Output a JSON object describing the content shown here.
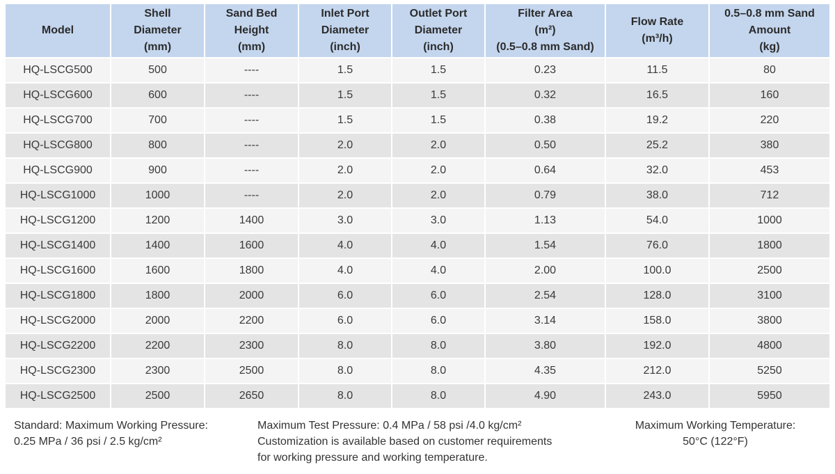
{
  "table": {
    "headers": [
      {
        "lines": [
          "Model"
        ]
      },
      {
        "lines": [
          "Shell",
          "Diameter",
          "(mm)"
        ]
      },
      {
        "lines": [
          "Sand Bed",
          "Height",
          "(mm)"
        ]
      },
      {
        "lines": [
          "Inlet Port",
          "Diameter",
          "(inch)"
        ]
      },
      {
        "lines": [
          "Outlet Port",
          "Diameter",
          "(inch)"
        ]
      },
      {
        "lines": [
          "Filter Area",
          "(m²)",
          "(0.5–0.8 mm Sand)"
        ]
      },
      {
        "lines": [
          "Flow Rate",
          "(m³/h)"
        ]
      },
      {
        "lines": [
          "0.5–0.8 mm Sand",
          "Amount",
          "(kg)"
        ]
      }
    ],
    "rows": [
      [
        "HQ-LSCG500",
        "500",
        "----",
        "1.5",
        "1.5",
        "0.23",
        "11.5",
        "80"
      ],
      [
        "HQ-LSCG600",
        "600",
        "----",
        "1.5",
        "1.5",
        "0.32",
        "16.5",
        "160"
      ],
      [
        "HQ-LSCG700",
        "700",
        "----",
        "1.5",
        "1.5",
        "0.38",
        "19.2",
        "220"
      ],
      [
        "HQ-LSCG800",
        "800",
        "----",
        "2.0",
        "2.0",
        "0.50",
        "25.2",
        "380"
      ],
      [
        "HQ-LSCG900",
        "900",
        "----",
        "2.0",
        "2.0",
        "0.64",
        "32.0",
        "453"
      ],
      [
        "HQ-LSCG1000",
        "1000",
        "----",
        "2.0",
        "2.0",
        "0.79",
        "38.0",
        "712"
      ],
      [
        "HQ-LSCG1200",
        "1200",
        "1400",
        "3.0",
        "3.0",
        "1.13",
        "54.0",
        "1000"
      ],
      [
        "HQ-LSCG1400",
        "1400",
        "1600",
        "4.0",
        "4.0",
        "1.54",
        "76.0",
        "1800"
      ],
      [
        "HQ-LSCG1600",
        "1600",
        "1800",
        "4.0",
        "4.0",
        "2.00",
        "100.0",
        "2500"
      ],
      [
        "HQ-LSCG1800",
        "1800",
        "2000",
        "6.0",
        "6.0",
        "2.54",
        "128.0",
        "3100"
      ],
      [
        "HQ-LSCG2000",
        "2000",
        "2200",
        "6.0",
        "6.0",
        "3.14",
        "158.0",
        "3800"
      ],
      [
        "HQ-LSCG2200",
        "2200",
        "2300",
        "8.0",
        "8.0",
        "3.80",
        "192.0",
        "4800"
      ],
      [
        "HQ-LSCG2300",
        "2300",
        "2500",
        "8.0",
        "8.0",
        "4.35",
        "212.0",
        "5250"
      ],
      [
        "HQ-LSCG2500",
        "2500",
        "2650",
        "8.0",
        "8.0",
        "4.90",
        "243.0",
        "5950"
      ]
    ]
  },
  "footer": {
    "left": [
      "Standard: Maximum Working Pressure:",
      "0.25 MPa / 36 psi / 2.5 kg/cm²"
    ],
    "middle": [
      "Maximum Test Pressure: 0.4 MPa / 58 psi /4.0 kg/cm²",
      "Customization is available based on customer requirements",
      "for working pressure and working temperature."
    ],
    "right": [
      "Maximum Working Temperature:",
      "50°C (122°F)"
    ]
  },
  "colors": {
    "header_bg": "#c4d6ee",
    "row_light": "#f4f4f4",
    "row_dark": "#e4e4e4"
  }
}
